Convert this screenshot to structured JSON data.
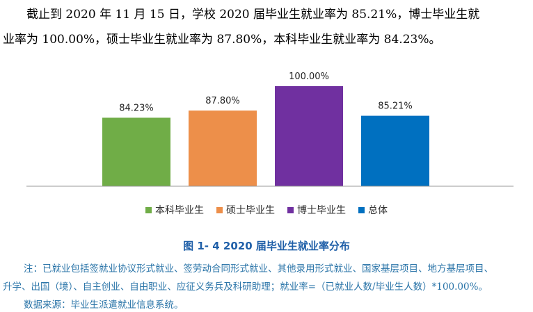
{
  "paragraph": {
    "line1": "截止到 2020 年 11 月 15 日，学校 2020 届毕业生就业率为 85.21%，博士毕业生就",
    "line2": "业率为 100.00%，硕士毕业生就业率为 87.80%，本科毕业生就业率为 84.23%。"
  },
  "chart_data": {
    "type": "bar",
    "categories": [
      "本科毕业生",
      "硕士毕业生",
      "博士毕业生",
      "总体"
    ],
    "values": [
      84.23,
      87.8,
      100.0,
      85.21
    ],
    "data_labels": [
      "84.23%",
      "87.80%",
      "100.00%",
      "85.21%"
    ],
    "colors": [
      "#70ad47",
      "#ed8f4a",
      "#7030a0",
      "#0070c0"
    ],
    "ylim": [
      50,
      100
    ],
    "grid": false,
    "legend_position": "bottom",
    "title": "图 1- 4    2020 届毕业生就业率分布"
  },
  "notes": {
    "line1": "注：已就业包括签就业协议形式就业、签劳动合同形式就业、其他录用形式就业、国家基层项目、地方基层项目、",
    "line2": "升学、出国（境）、自主创业、自由职业、应征义务兵及科研助理；就业率=（已就业人数/毕业生人数）*100.00%。",
    "source": "数据来源：毕业生派遣就业信息系统。"
  }
}
